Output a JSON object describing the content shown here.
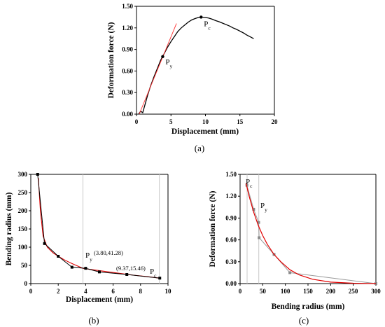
{
  "chart_data": [
    {
      "type": "line",
      "panel_label": "(a)",
      "xlabel": "Displacement (mm)",
      "ylabel": "Deformation force (N)",
      "xlim": [
        0,
        20
      ],
      "ylim": [
        0,
        1.5
      ],
      "xticks": [
        0,
        5,
        10,
        15,
        20
      ],
      "yticks": [
        0.0,
        0.3,
        0.6,
        0.9,
        1.2,
        1.5
      ],
      "ytick_labels": [
        "0.00",
        "0.30",
        "0.60",
        "0.90",
        "1.20",
        "1.50"
      ],
      "curve": {
        "x": [
          0.3,
          0.6,
          0.9,
          1.2,
          1.6,
          2.0,
          2.5,
          3.0,
          3.5,
          4.0,
          4.5,
          5.0,
          5.5,
          6.0,
          6.5,
          7.0,
          7.5,
          8.0,
          8.5,
          9.0,
          9.4,
          10.0,
          10.5,
          11.0,
          11.5,
          12.0,
          12.5,
          13.0,
          13.5,
          14.0,
          14.5,
          15.0,
          15.5,
          16.0,
          16.5,
          17.0
        ],
        "y": [
          0.0,
          0.04,
          0.02,
          0.12,
          0.26,
          0.38,
          0.51,
          0.63,
          0.75,
          0.84,
          0.93,
          1.01,
          1.08,
          1.15,
          1.2,
          1.24,
          1.28,
          1.31,
          1.33,
          1.345,
          1.35,
          1.345,
          1.335,
          1.32,
          1.3,
          1.285,
          1.265,
          1.245,
          1.225,
          1.2,
          1.18,
          1.155,
          1.13,
          1.1,
          1.075,
          1.05
        ]
      },
      "tangent_line": {
        "x": [
          0.4,
          5.8
        ],
        "y": [
          0.0,
          1.26
        ]
      },
      "points": [
        {
          "label": "P",
          "sub": "y",
          "x": 3.8,
          "y": 0.8
        },
        {
          "label": "P",
          "sub": "c",
          "x": 9.37,
          "y": 1.35
        }
      ]
    },
    {
      "type": "line",
      "panel_label": "(b)",
      "xlabel": "Displacement (mm)",
      "ylabel": "Bending radius (mm)",
      "xlim": [
        0,
        10
      ],
      "ylim": [
        0,
        300
      ],
      "xticks": [
        0,
        2,
        4,
        6,
        8,
        10
      ],
      "yticks": [
        0,
        50,
        100,
        150,
        200,
        250,
        300
      ],
      "measured": {
        "x": [
          0.5,
          1.0,
          2.0,
          3.0,
          4.0,
          5.0,
          7.0,
          9.4
        ],
        "y": [
          300,
          110,
          75,
          45,
          42,
          32,
          25,
          15
        ]
      },
      "fit": {
        "x": [
          0.55,
          0.7,
          0.9,
          1.2,
          1.6,
          2.0,
          2.5,
          3.0,
          3.5,
          3.8,
          4.5,
          5.5,
          6.5,
          7.5,
          8.5,
          9.4
        ],
        "y": [
          290,
          200,
          130,
          100,
          85,
          75,
          64,
          55,
          47,
          42,
          38,
          33,
          28,
          23,
          19,
          15
        ]
      },
      "vlines": [
        3.8,
        9.37
      ],
      "annotations": [
        {
          "label": "P",
          "sub": "y",
          "coord": "(3.80,41.28)"
        },
        {
          "coord": "(9.37,15.46)",
          "label": "P",
          "sub": "c"
        }
      ]
    },
    {
      "type": "line",
      "panel_label": "(c)",
      "xlabel": "Bending radius (mm)",
      "ylabel": "Deformation force (N)",
      "xlim": [
        0,
        300
      ],
      "ylim": [
        0,
        1.5
      ],
      "xticks": [
        0,
        50,
        100,
        150,
        200,
        250,
        300
      ],
      "yticks": [
        0.0,
        0.3,
        0.6,
        0.9,
        1.2,
        1.5
      ],
      "ytick_labels": [
        "0.00",
        "0.30",
        "0.60",
        "0.90",
        "1.20",
        "1.50"
      ],
      "measured": {
        "x": [
          15,
          30,
          41,
          42,
          75,
          110,
          300
        ],
        "y": [
          1.35,
          1.02,
          0.84,
          0.63,
          0.4,
          0.15,
          0.0
        ]
      },
      "fit": {
        "x": [
          13,
          20,
          30,
          40,
          50,
          60,
          75,
          90,
          110,
          130,
          160,
          200,
          250,
          300
        ],
        "y": [
          1.38,
          1.2,
          0.98,
          0.8,
          0.66,
          0.54,
          0.4,
          0.3,
          0.19,
          0.12,
          0.06,
          0.02,
          0.005,
          0.0
        ]
      },
      "vlines": [
        15.46,
        41.28
      ],
      "annotations": [
        {
          "label": "P",
          "sub": "c"
        },
        {
          "label": "P",
          "sub": "y"
        }
      ]
    }
  ]
}
